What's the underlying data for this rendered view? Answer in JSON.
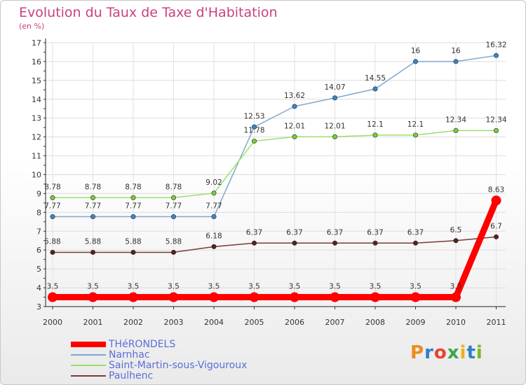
{
  "header": {
    "title": "Evolution du Taux de Taxe d'Habitation",
    "subtitle": "(en %)"
  },
  "logo": {
    "text": "Proxiti"
  },
  "chart_data": {
    "type": "line",
    "title": "Evolution du Taux de Taxe d'Habitation",
    "ylabel": "(en %)",
    "xlabel": "",
    "ylim": [
      3,
      17
    ],
    "yticks": [
      3,
      4,
      5,
      6,
      7,
      8,
      9,
      10,
      11,
      12,
      13,
      14,
      15,
      16,
      17
    ],
    "categories": [
      "2000",
      "2001",
      "2002",
      "2003",
      "2004",
      "2005",
      "2006",
      "2007",
      "2008",
      "2009",
      "2010",
      "2011"
    ],
    "grid": true,
    "legend_position": "bottom-left",
    "series": [
      {
        "name": "Narnhac",
        "color": "#7fa8cf",
        "marker_color": "#3a86c8",
        "values": [
          7.77,
          7.77,
          7.77,
          7.77,
          7.77,
          12.53,
          13.62,
          14.07,
          14.55,
          16,
          16,
          16.32
        ],
        "labels": [
          "7.77",
          "7.77",
          "7.77",
          "7.77",
          "7.77",
          "12.53",
          "13.62",
          "14.07",
          "14.55",
          "16",
          "16",
          "16.32"
        ]
      },
      {
        "name": "Saint-Martin-sous-Vigouroux",
        "color": "#9be06a",
        "marker_color": "#7acb3c",
        "values": [
          8.78,
          8.78,
          8.78,
          8.78,
          9.02,
          11.78,
          12.01,
          12.01,
          12.1,
          12.1,
          12.34,
          12.34
        ],
        "labels": [
          "8.78",
          "8.78",
          "8.78",
          "8.78",
          "9.02",
          "11.78",
          "12.01",
          "12.01",
          "12.1",
          "12.1",
          "12.34",
          "12.34"
        ]
      },
      {
        "name": "Paulhenc",
        "color": "#7a3a3a",
        "marker_color": "#5a1f1f",
        "values": [
          5.88,
          5.88,
          5.88,
          5.88,
          6.18,
          6.37,
          6.37,
          6.37,
          6.37,
          6.37,
          6.5,
          6.7
        ],
        "labels": [
          "5.88",
          "5.88",
          "5.88",
          "5.88",
          "6.18",
          "6.37",
          "6.37",
          "6.37",
          "6.37",
          "6.37",
          "6.5",
          "6.7"
        ]
      },
      {
        "name": "THéRONDELS",
        "color": "#ff0000",
        "marker_color": "#ff0000",
        "values": [
          3.5,
          3.5,
          3.5,
          3.5,
          3.5,
          3.5,
          3.5,
          3.5,
          3.5,
          3.5,
          3.5,
          8.63
        ],
        "labels": [
          "3.5",
          "3.5",
          "3.5",
          "3.5",
          "3.5",
          "3.5",
          "3.5",
          "3.5",
          "3.5",
          "3.5",
          "3.5",
          "8.63"
        ]
      }
    ],
    "legend_order": [
      "THéRONDELS",
      "Narnhac",
      "Saint-Martin-sous-Vigouroux",
      "Paulhenc"
    ]
  }
}
